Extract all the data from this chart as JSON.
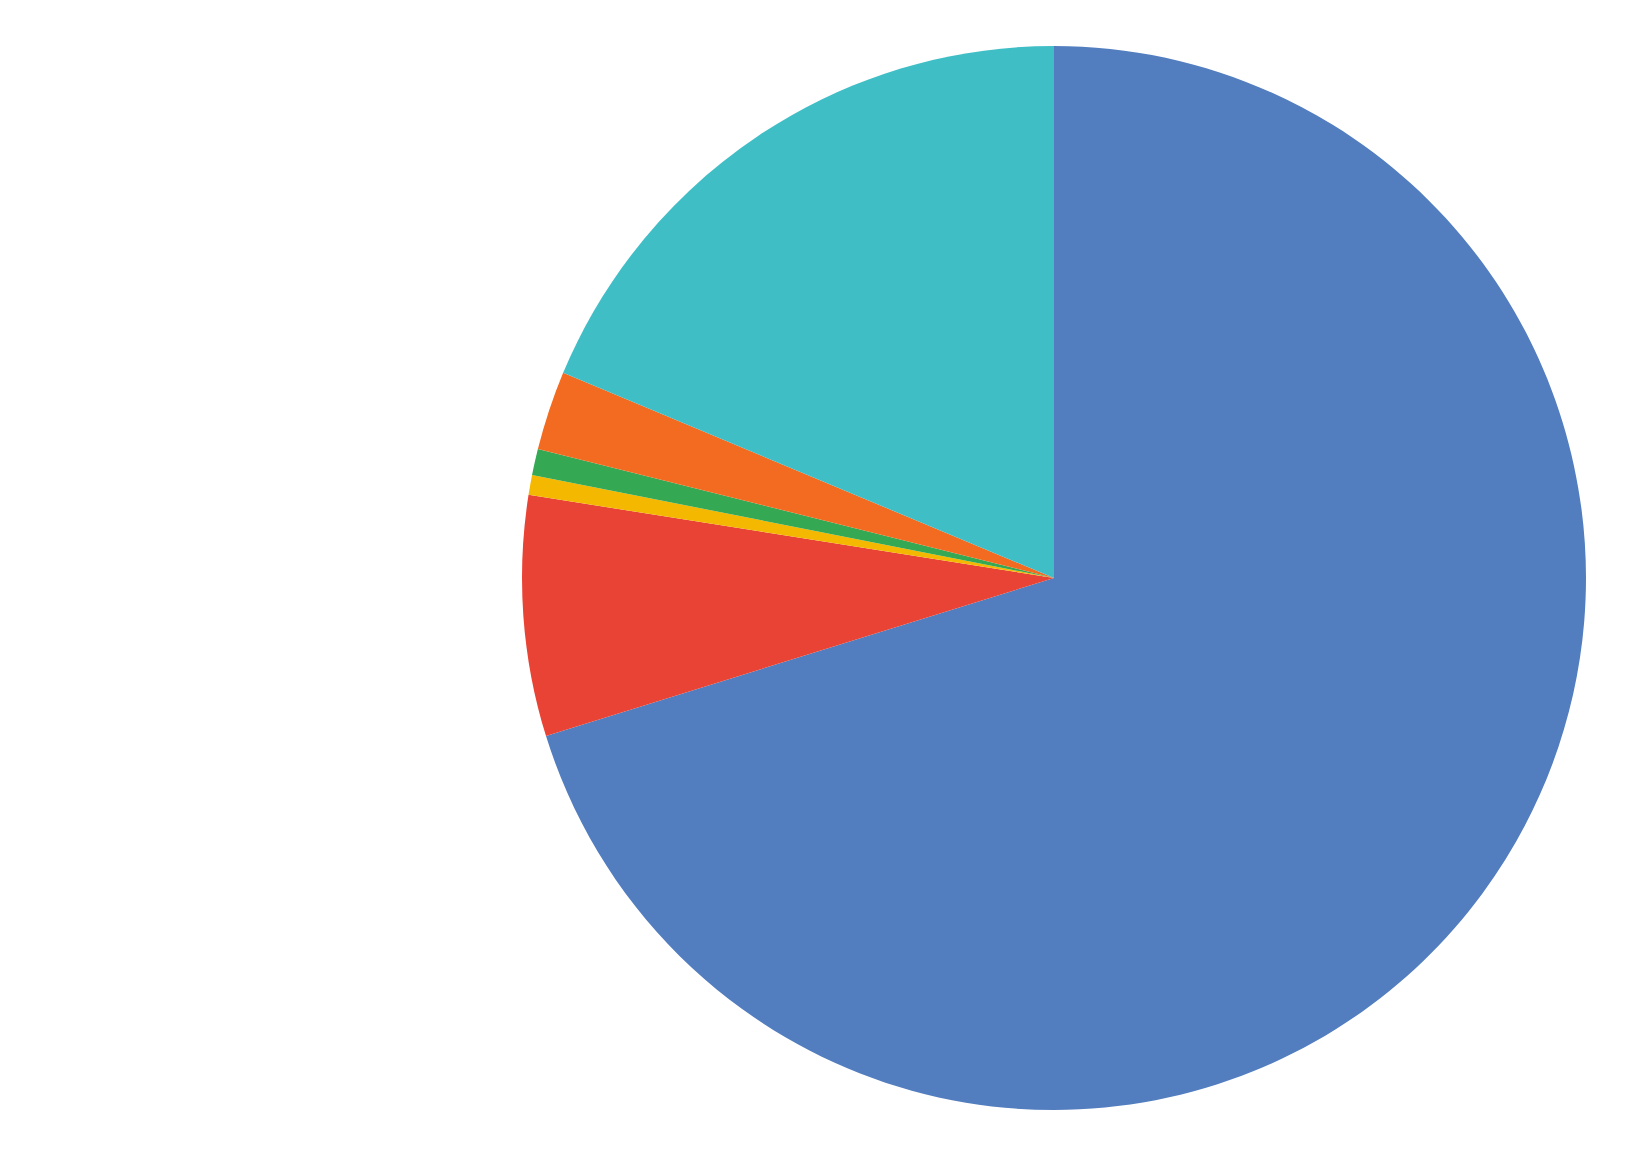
{
  "chart_data": {
    "type": "pie",
    "categories": [
      null,
      null,
      null,
      null,
      null,
      null
    ],
    "values": [
      70.2,
      7.3,
      0.6,
      0.8,
      2.4,
      18.7
    ],
    "colors": [
      "#527dbf",
      "#e84335",
      "#f5b800",
      "#34a853",
      "#f26b21",
      "#3fbec6"
    ]
  }
}
